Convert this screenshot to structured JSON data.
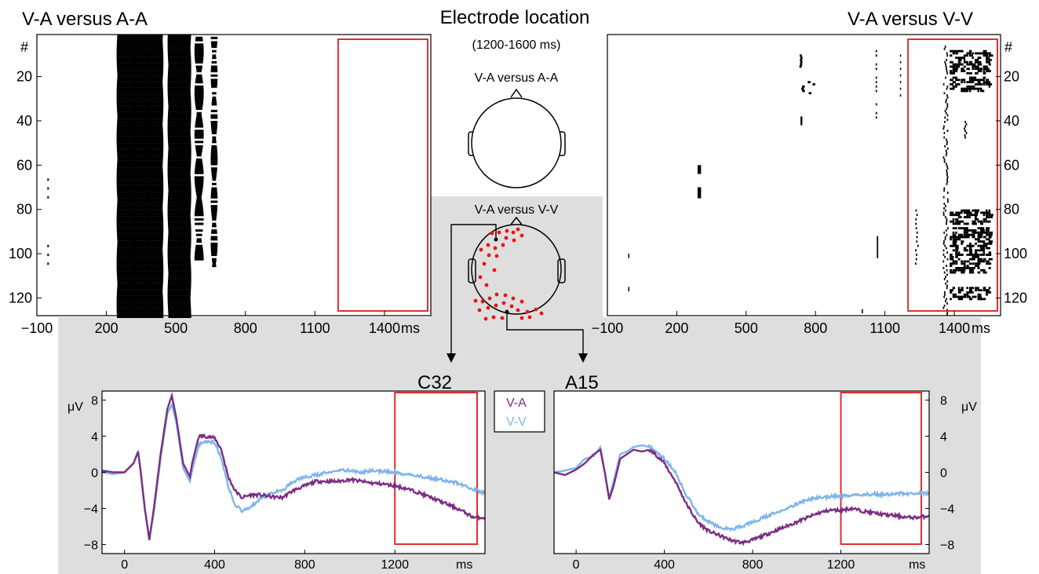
{
  "figure": {
    "center_title": "Electrode location",
    "center_window": "(1200-1600 ms)",
    "head_top_label": "V-A  versus A-A",
    "head_bottom_label": "V-A versus V-V",
    "electrode_left": "C32",
    "electrode_right": "A15"
  },
  "colors": {
    "va": "#7b2d82",
    "vv": "#7fb5ea",
    "window": "#e03030",
    "shade": "#dedede",
    "electrode_dot": "#ee1111"
  },
  "chart_data": [
    {
      "id": "raster-left",
      "type": "heatmap",
      "title": "V-A  versus A-A",
      "ylabel": "#",
      "x_unit": "ms",
      "x_ticks": [
        -100,
        200,
        500,
        800,
        1100,
        1400
      ],
      "y_ticks": [
        20,
        40,
        60,
        80,
        100,
        120
      ],
      "xlim": [
        -100,
        1600
      ],
      "ylim": [
        1,
        128
      ],
      "significant_bands_ms": [
        [
          250,
          320
        ],
        [
          320,
          380
        ],
        [
          380,
          440
        ],
        [
          470,
          520
        ],
        [
          520,
          560
        ],
        [
          580,
          620
        ],
        [
          650,
          680
        ]
      ],
      "window_ms": [
        1200,
        1600
      ]
    },
    {
      "id": "raster-right",
      "type": "heatmap",
      "title": "V-A versus V-V",
      "ylabel": "#",
      "x_unit": "ms",
      "x_ticks": [
        -100,
        200,
        500,
        800,
        1100,
        1400
      ],
      "y_ticks": [
        20,
        40,
        60,
        80,
        100,
        120
      ],
      "xlim": [
        -100,
        1600
      ],
      "ylim": [
        1,
        128
      ],
      "window_ms": [
        1200,
        1600
      ]
    },
    {
      "id": "erp-c32",
      "type": "line",
      "title": "C32",
      "ylabel": "μV",
      "x_unit": "ms",
      "x_ticks": [
        0,
        400,
        800,
        1200
      ],
      "y_ticks": [
        8,
        4,
        0,
        -4,
        -8
      ],
      "xlim": [
        -100,
        1600
      ],
      "ylim": [
        -9,
        9
      ],
      "window_ms": [
        1200,
        1600
      ],
      "series": [
        {
          "name": "V-A",
          "x": [
            -100,
            -50,
            0,
            40,
            60,
            70,
            90,
            110,
            130,
            160,
            190,
            210,
            230,
            260,
            290,
            300,
            330,
            360,
            400,
            430,
            460,
            490,
            520,
            560,
            600,
            650,
            700,
            750,
            800,
            850,
            900,
            950,
            1000,
            1050,
            1100,
            1150,
            1200,
            1250,
            1300,
            1350,
            1400,
            1450,
            1500,
            1550,
            1600
          ],
          "y": [
            0.2,
            0,
            0,
            1,
            2.3,
            0.5,
            -4,
            -7.5,
            -4,
            2,
            7,
            8.5,
            6,
            1,
            -0.5,
            1,
            4,
            4,
            3.8,
            2.5,
            -0.5,
            -2,
            -2.8,
            -2.5,
            -2.5,
            -2.7,
            -2.8,
            -2,
            -1.5,
            -1,
            -1,
            -1,
            -0.8,
            -1,
            -1.2,
            -1.3,
            -1.5,
            -1.8,
            -2.2,
            -2.7,
            -3.2,
            -3.7,
            -4.3,
            -5,
            -5
          ]
        },
        {
          "name": "V-V",
          "x": [
            -100,
            -50,
            0,
            40,
            60,
            70,
            90,
            110,
            130,
            160,
            190,
            210,
            230,
            260,
            290,
            300,
            330,
            360,
            400,
            430,
            460,
            490,
            520,
            560,
            600,
            650,
            700,
            750,
            800,
            850,
            900,
            950,
            1000,
            1050,
            1100,
            1150,
            1200,
            1250,
            1300,
            1350,
            1400,
            1450,
            1500,
            1550,
            1600
          ],
          "y": [
            0,
            -0.2,
            0,
            1,
            2.2,
            0.3,
            -4,
            -7.3,
            -4.5,
            1.5,
            6.5,
            7.5,
            5.5,
            0.5,
            -1,
            0.2,
            3,
            3.5,
            3.3,
            1.5,
            -1.5,
            -3.5,
            -4.3,
            -3.8,
            -3,
            -2.2,
            -2,
            -1,
            -0.5,
            -0.3,
            0,
            0.3,
            0.2,
            0,
            0.2,
            0.1,
            0,
            -0.2,
            -0.4,
            -0.6,
            -0.8,
            -1,
            -1.4,
            -1.9,
            -2.3
          ]
        }
      ]
    },
    {
      "id": "erp-a15",
      "type": "line",
      "title": "A15",
      "ylabel": "μV",
      "x_unit": "ms",
      "x_ticks": [
        0,
        400,
        800,
        1200
      ],
      "y_ticks": [
        8,
        4,
        0,
        -4,
        -8
      ],
      "xlim": [
        -100,
        1600
      ],
      "ylim": [
        -9,
        9
      ],
      "window_ms": [
        1200,
        1600
      ],
      "series": [
        {
          "name": "V-A",
          "x": [
            -100,
            -50,
            0,
            40,
            80,
            110,
            130,
            150,
            170,
            200,
            230,
            260,
            300,
            330,
            360,
            400,
            450,
            500,
            550,
            600,
            650,
            700,
            750,
            800,
            850,
            900,
            950,
            1000,
            1050,
            1100,
            1150,
            1200,
            1250,
            1300,
            1350,
            1400,
            1450,
            1500,
            1550,
            1600
          ],
          "y": [
            0,
            -0.3,
            0.3,
            1,
            2,
            2.5,
            0,
            -3,
            -1.5,
            1.5,
            2,
            2.5,
            2.3,
            2.5,
            2,
            1,
            -1,
            -3.5,
            -5.5,
            -6.5,
            -7,
            -7.5,
            -7.8,
            -7.5,
            -7,
            -6.5,
            -6,
            -5.5,
            -5,
            -4.5,
            -4.2,
            -4.2,
            -4,
            -4.3,
            -4.5,
            -4.7,
            -4.8,
            -5,
            -5,
            -4.8
          ]
        },
        {
          "name": "V-V",
          "x": [
            -100,
            -50,
            0,
            40,
            80,
            110,
            130,
            150,
            170,
            200,
            230,
            260,
            300,
            330,
            360,
            400,
            450,
            500,
            550,
            600,
            650,
            700,
            750,
            800,
            850,
            900,
            950,
            1000,
            1050,
            1100,
            1150,
            1200,
            1250,
            1300,
            1350,
            1400,
            1450,
            1500,
            1550,
            1600
          ],
          "y": [
            0,
            0.2,
            0.5,
            1.5,
            1.8,
            2.8,
            0,
            -2.8,
            -1,
            2,
            2.3,
            2.8,
            3,
            2.8,
            2.4,
            1.5,
            0,
            -2.5,
            -4.5,
            -5.5,
            -6,
            -6.3,
            -6,
            -5.5,
            -5,
            -4.5,
            -4,
            -3.5,
            -3,
            -2.8,
            -2.7,
            -2.6,
            -2.5,
            -2.5,
            -2.4,
            -2.5,
            -2.3,
            -2.4,
            -2.3,
            -2.3
          ]
        }
      ]
    }
  ]
}
